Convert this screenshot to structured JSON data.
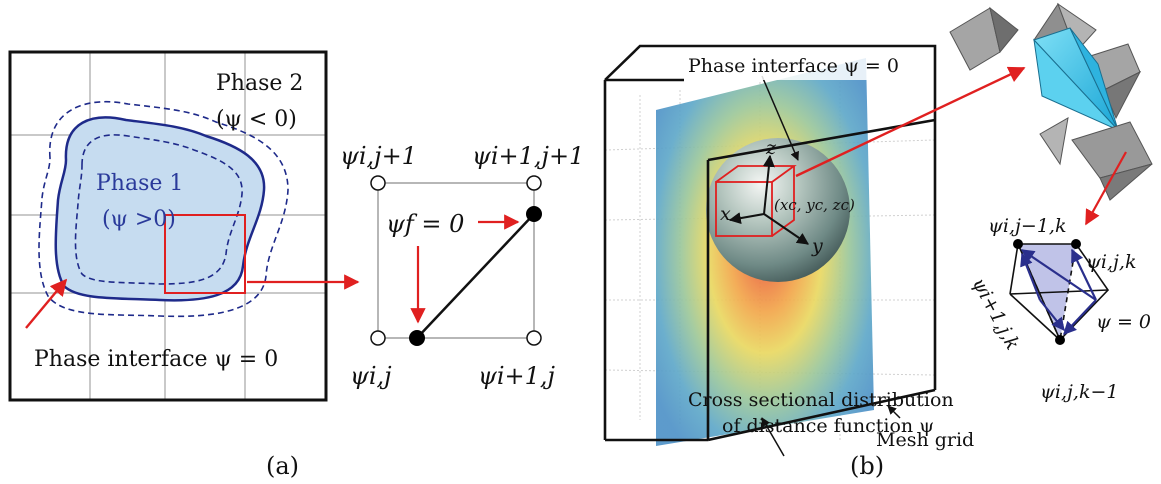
{
  "panel_a": {
    "caption": "(a)",
    "phase2_name": "Phase 2",
    "phase2_cond": "(ψ < 0)",
    "phase1_name": "Phase 1",
    "phase1_cond": "(ψ >0)",
    "interface_label": "Phase interface ψ = 0",
    "psi_f_label": "ψf = 0",
    "corner_top_left": "ψi,j+1",
    "corner_top_right": "ψi+1,j+1",
    "corner_bottom_left": "ψi,j",
    "corner_bottom_right": "ψi+1,j"
  },
  "panel_b": {
    "caption": "(b)",
    "interface_label": "Phase interface ψ = 0",
    "mesh_label": "Mesh grid",
    "cross_section_line1": "Cross sectional distribution",
    "cross_section_line2": "of distance function ψ",
    "axis_x": "x",
    "axis_y": "y",
    "axis_z": "z",
    "center_label": "(xc, yc, zc)",
    "tet_top": "ψi,j−1,k",
    "tet_right": "ψi,j,k",
    "tet_left": "ψi+1,j,k",
    "tet_bottom": "ψi,j,k−1",
    "tet_zero": "ψ = 0"
  },
  "colors": {
    "interface_blue": "#1e2a8a",
    "fill_blue": "#c6dcf0",
    "red": "#e02020",
    "cyan": "#33c3e8"
  }
}
